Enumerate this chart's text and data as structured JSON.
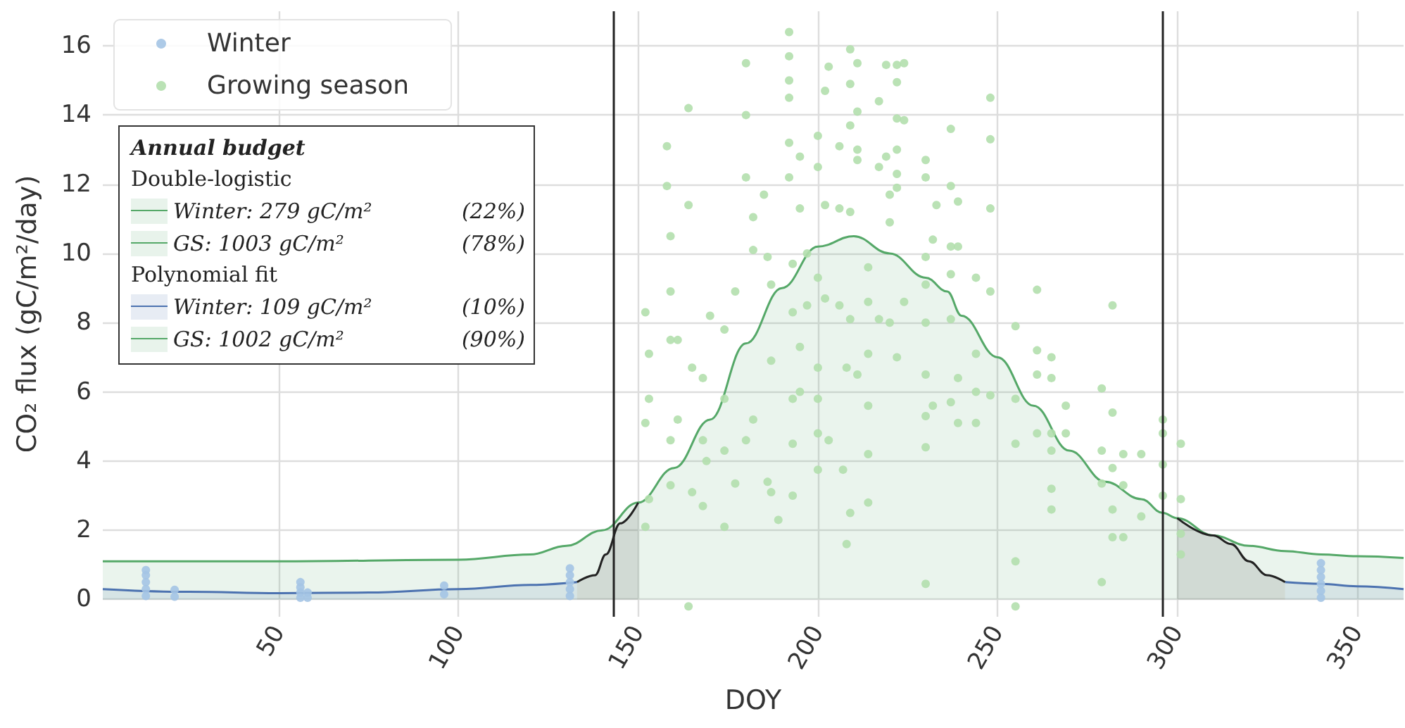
{
  "chart_data": {
    "type": "scatter",
    "xlabel": "DOY",
    "ylabel": "CO₂ flux (gC/m²/day)",
    "xlim": [
      1,
      363
    ],
    "ylim": [
      -0.5,
      17
    ],
    "xticks": [
      50,
      100,
      150,
      200,
      250,
      300,
      350
    ],
    "yticks": [
      0,
      2,
      4,
      6,
      8,
      10,
      12,
      14,
      16
    ],
    "grid": true,
    "legend": "top left",
    "annotations": [
      "Annual budget",
      "Double-logistic",
      "Winter: 279 gC/m² (22%)",
      "GS: 1003 gC/m² (78%)",
      "Polynomial fit",
      "Winter: 109 gC/m² (10%)",
      "GS: 1002 gC/m² (90%)"
    ],
    "ref_lines": [
      {
        "axis": "x",
        "value": 143,
        "color": "#222222"
      },
      {
        "axis": "x",
        "value": 296,
        "color": "#222222"
      }
    ],
    "series": [
      {
        "type": "area",
        "color": "#55a868",
        "x": [
          1,
          50,
          100,
          120,
          130,
          140,
          150,
          160,
          170,
          180,
          190,
          200,
          210,
          220,
          230,
          236,
          240,
          250,
          260,
          270,
          280,
          290,
          296,
          300,
          310,
          320,
          330,
          340,
          350,
          363
        ],
        "values": [
          1.1,
          1.1,
          1.15,
          1.3,
          1.55,
          2.0,
          2.8,
          3.8,
          5.2,
          7.4,
          9.0,
          10.2,
          10.5,
          10.0,
          9.3,
          8.9,
          8.2,
          7.0,
          5.6,
          4.3,
          3.4,
          2.9,
          2.5,
          2.35,
          1.85,
          1.55,
          1.4,
          1.3,
          1.25,
          1.2
        ]
      },
      {
        "type": "area",
        "color": "#4c72b0",
        "x": [
          1,
          25,
          50,
          75,
          100,
          120,
          133
        ],
        "values": [
          0.3,
          0.22,
          0.18,
          0.2,
          0.3,
          0.42,
          0.5
        ]
      },
      {
        "type": "area",
        "color": "#4c72b0",
        "x": [
          330,
          340,
          350,
          363
        ],
        "values": [
          0.5,
          0.45,
          0.38,
          0.3
        ]
      },
      {
        "type": "area",
        "color": "#222222",
        "x": [
          133,
          138,
          141,
          145,
          150
        ],
        "values": [
          0.5,
          0.7,
          1.3,
          2.2,
          2.8
        ]
      },
      {
        "type": "area",
        "color": "#222222",
        "x": [
          300,
          310,
          315,
          320,
          325,
          330
        ],
        "values": [
          2.35,
          1.85,
          1.6,
          1.1,
          0.7,
          0.5
        ]
      },
      {
        "name": "Winter",
        "marker": "circle",
        "color": "#a4c4e4",
        "x": [
          13,
          13,
          13,
          13,
          13,
          21,
          21,
          56,
          56,
          56,
          56,
          58,
          58,
          96,
          96,
          131,
          131,
          131,
          131,
          131,
          340,
          340,
          340,
          340,
          340,
          340
        ],
        "values": [
          0.1,
          0.3,
          0.5,
          0.7,
          0.85,
          0.08,
          0.28,
          0.05,
          0.2,
          0.35,
          0.5,
          0.05,
          0.2,
          0.15,
          0.4,
          0.1,
          0.3,
          0.5,
          0.7,
          0.9,
          0.05,
          0.25,
          0.45,
          0.65,
          0.85,
          1.05
        ]
      },
      {
        "name": "Growing season",
        "marker": "circle",
        "color": "#b3dfad",
        "x": [
          152,
          152,
          152,
          153,
          153,
          153,
          158,
          158,
          159,
          159,
          159,
          159,
          159,
          161,
          161,
          164,
          164,
          164,
          165,
          165,
          168,
          168,
          168,
          170,
          169,
          174,
          174,
          174,
          174,
          177,
          177,
          180,
          180,
          180,
          182,
          182,
          182,
          180,
          185,
          186,
          187,
          187,
          187,
          186,
          189,
          192,
          192,
          192,
          192,
          192,
          192,
          193,
          193,
          193,
          193,
          193,
          195,
          195,
          195,
          195,
          197,
          197,
          200,
          200,
          200,
          200,
          200,
          200,
          200,
          202,
          202,
          202,
          203,
          203,
          206,
          206,
          206,
          207,
          208,
          208,
          209,
          209,
          209,
          209,
          209,
          209,
          211,
          211,
          211,
          211,
          211,
          214,
          214,
          214,
          214,
          214,
          214,
          217,
          217,
          217,
          219,
          219,
          220,
          220,
          220,
          222,
          222,
          222,
          222,
          222,
          222,
          222,
          224,
          224,
          224,
          230,
          230,
          230,
          230,
          230,
          230,
          230,
          230,
          230,
          232,
          232,
          233,
          237,
          237,
          237,
          237,
          237,
          237,
          239,
          239,
          239,
          239,
          244,
          244,
          244,
          244,
          248,
          248,
          248,
          248,
          248,
          255,
          255,
          255,
          255,
          255,
          261,
          261,
          261,
          261,
          265,
          265,
          265,
          265,
          265,
          265,
          269,
          269,
          279,
          279,
          279,
          279,
          282,
          282,
          282,
          282,
          282,
          285,
          285,
          285,
          290,
          290,
          296,
          296,
          296,
          296,
          301,
          301,
          301,
          301
        ],
        "values": [
          8.3,
          5.1,
          2.1,
          7.1,
          5.8,
          2.9,
          13.1,
          11.95,
          10.5,
          8.9,
          7.5,
          4.6,
          3.3,
          7.5,
          5.2,
          14.2,
          11.4,
          -0.2,
          6.7,
          3.1,
          6.4,
          4.6,
          2.7,
          8.2,
          4.0,
          7.8,
          5.8,
          4.3,
          2.1,
          8.9,
          3.35,
          15.5,
          14.0,
          12.2,
          11.05,
          10.1,
          5.2,
          4.6,
          11.7,
          9.9,
          9.1,
          6.9,
          3.1,
          3.4,
          2.3,
          16.4,
          15.7,
          15.0,
          14.5,
          13.2,
          12.2,
          9.7,
          8.3,
          5.8,
          4.5,
          3.0,
          12.8,
          11.3,
          7.3,
          6.0,
          10.0,
          8.5,
          13.4,
          12.5,
          9.3,
          6.7,
          5.8,
          4.8,
          3.75,
          14.7,
          11.4,
          8.7,
          15.4,
          4.6,
          13.1,
          11.3,
          8.5,
          3.75,
          6.7,
          1.6,
          15.9,
          14.9,
          13.7,
          11.2,
          8.1,
          2.5,
          15.5,
          14.1,
          13.0,
          12.7,
          6.5,
          9.6,
          8.6,
          7.1,
          5.6,
          4.2,
          2.8,
          14.4,
          12.5,
          8.1,
          15.45,
          12.8,
          11.7,
          10.9,
          8.0,
          15.45,
          14.95,
          13.9,
          13.0,
          12.3,
          11.9,
          7.0,
          15.5,
          13.85,
          8.6,
          12.7,
          12.2,
          9.9,
          9.1,
          8.0,
          6.5,
          5.3,
          4.4,
          0.45,
          5.6,
          10.4,
          11.4,
          13.6,
          11.95,
          10.2,
          9.4,
          8.1,
          5.7,
          11.5,
          10.2,
          6.4,
          5.1,
          9.3,
          7.1,
          6.0,
          5.1,
          14.5,
          13.3,
          11.3,
          8.9,
          5.9,
          7.9,
          5.8,
          4.5,
          1.1,
          -0.2,
          8.95,
          7.2,
          6.5,
          4.8,
          7.0,
          6.4,
          4.8,
          4.3,
          3.2,
          2.6,
          5.6,
          4.8,
          6.1,
          4.3,
          3.35,
          0.5,
          8.5,
          5.4,
          3.8,
          2.6,
          1.8,
          4.2,
          3.3,
          1.8,
          4.2,
          2.4,
          5.2,
          4.8,
          3.9,
          3.0,
          4.5,
          2.9,
          1.9,
          1.3
        ]
      }
    ]
  }
}
